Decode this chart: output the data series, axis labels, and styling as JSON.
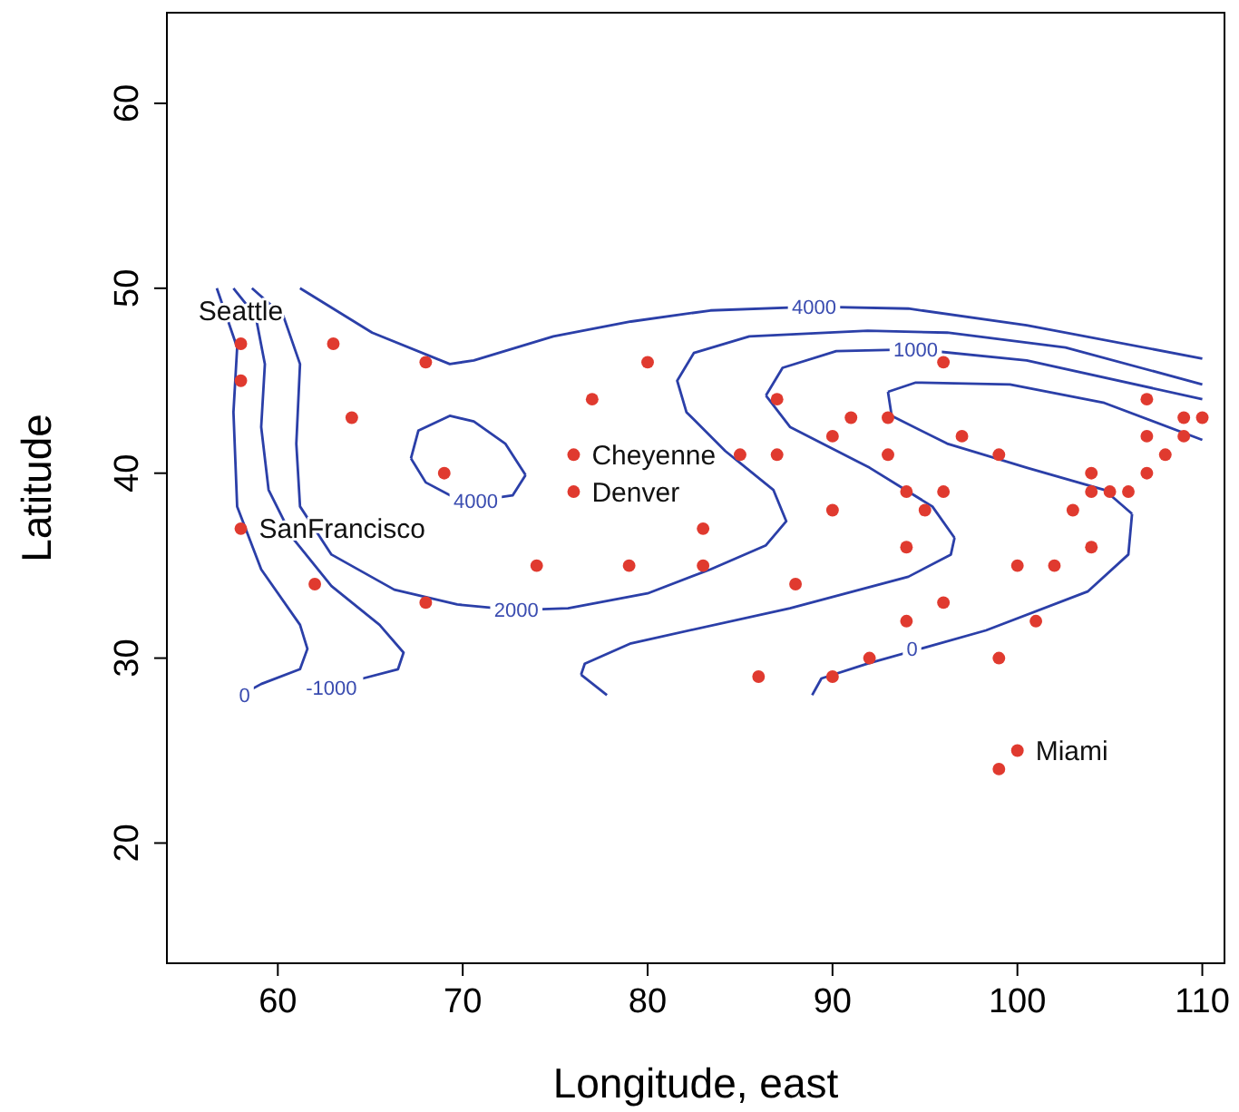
{
  "chart_data": {
    "type": "scatter",
    "xlabel": "Longitude, east",
    "ylabel": "Latitude",
    "xlim": [
      54.0,
      111.2
    ],
    "ylim": [
      13.5,
      64.9
    ],
    "xticks": [
      60,
      70,
      80,
      90,
      100,
      110
    ],
    "yticks": [
      20,
      30,
      40,
      50,
      60
    ],
    "grid": false,
    "marker": "circle",
    "series": [
      {
        "color": "#e03a2f",
        "x": [
          58,
          58,
          63,
          68,
          64,
          69,
          58,
          62,
          68,
          74,
          76,
          76,
          77,
          80,
          79,
          83,
          83,
          85,
          87,
          87,
          88,
          86,
          90,
          90,
          90,
          91,
          93,
          93,
          94,
          95,
          94,
          94,
          96,
          96,
          96,
          97,
          92,
          99,
          99,
          100,
          101,
          102,
          103,
          104,
          104,
          104,
          105,
          106,
          107,
          107,
          107,
          108,
          109,
          109,
          110,
          100,
          99
        ],
        "values": [
          47,
          45,
          47,
          46,
          43,
          40,
          37,
          34,
          33,
          35,
          41,
          39,
          44,
          46,
          35,
          37,
          35,
          41,
          44,
          41,
          34,
          29,
          42,
          38,
          29,
          43,
          43,
          41,
          39,
          38,
          36,
          32,
          46,
          39,
          33,
          42,
          30,
          41,
          30,
          35,
          32,
          35,
          38,
          40,
          39,
          36,
          39,
          39,
          44,
          42,
          40,
          41,
          43,
          42,
          43,
          25,
          24
        ]
      },
      {
        "type": "line",
        "marker": "none",
        "color": "#2b3fa8",
        "x": [
          56.7,
          57.8,
          57.6,
          57.8,
          59.1,
          61.2,
          61.6,
          61.2,
          59.1,
          58.0
        ],
        "values": [
          50.0,
          46.8,
          43.3,
          38.2,
          34.8,
          31.8,
          30.5,
          29.4,
          28.6,
          28.0
        ]
      },
      {
        "type": "line",
        "marker": "none",
        "color": "#2b3fa8",
        "x": [
          57.6,
          58.8,
          59.3,
          59.1,
          59.5,
          60.8,
          62.9,
          65.5,
          66.8,
          66.5,
          64.6,
          61.4
        ],
        "values": [
          50.0,
          48.5,
          45.9,
          42.5,
          39.1,
          36.5,
          33.9,
          31.8,
          30.3,
          29.4,
          28.9,
          27.9
        ]
      },
      {
        "type": "line",
        "marker": "none",
        "color": "#2b3fa8",
        "x": [
          58.6,
          60.3,
          61.2,
          61.0,
          61.2,
          62.9,
          66.3,
          69.7,
          72.9,
          75.7,
          80.0,
          83.4,
          86.4,
          87.5,
          86.8,
          84.2,
          82.1,
          81.6,
          82.5,
          85.5,
          91.9,
          96.2,
          102.6,
          110.0
        ],
        "values": [
          50.0,
          48.5,
          45.9,
          41.6,
          38.2,
          35.6,
          33.7,
          32.9,
          32.6,
          32.7,
          33.5,
          34.8,
          36.1,
          37.4,
          39.1,
          41.2,
          43.3,
          45.0,
          46.5,
          47.4,
          47.7,
          47.6,
          46.8,
          44.8
        ]
      },
      {
        "type": "line",
        "marker": "none",
        "color": "#2b3fa8",
        "x": [
          61.2,
          65.1,
          69.3,
          70.6,
          74.9,
          79.1,
          83.4,
          89.0,
          94.1,
          100.5,
          110.0
        ],
        "values": [
          50.0,
          47.6,
          45.9,
          46.1,
          47.4,
          48.2,
          48.8,
          49.0,
          48.9,
          48.0,
          46.2
        ]
      },
      {
        "type": "line",
        "marker": "none",
        "color": "#2b3fa8",
        "x": [
          67.2,
          67.6,
          69.3,
          70.6,
          72.3,
          73.4
        ],
        "values": [
          40.8,
          42.3,
          43.1,
          42.8,
          41.6,
          39.9
        ]
      },
      {
        "type": "line",
        "marker": "none",
        "color": "#2b3fa8",
        "x": [
          67.2,
          68.0,
          69.7,
          70.6,
          72.7,
          73.4
        ],
        "values": [
          40.8,
          39.5,
          38.6,
          38.5,
          38.8,
          39.9
        ]
      },
      {
        "type": "line",
        "marker": "none",
        "color": "#2b3fa8",
        "x": [
          77.8,
          76.4
        ],
        "values": [
          28.0,
          29.1
        ]
      },
      {
        "type": "line",
        "marker": "none",
        "color": "#2b3fa8",
        "x": [
          76.4,
          76.6,
          79.1,
          87.7,
          94.1,
          96.4,
          96.6
        ],
        "values": [
          29.1,
          29.7,
          30.8,
          32.7,
          34.4,
          35.6,
          36.5
        ]
      },
      {
        "type": "line",
        "marker": "none",
        "color": "#2b3fa8",
        "x": [
          96.6,
          95.4,
          92.0,
          87.7,
          86.4
        ],
        "values": [
          36.5,
          38.2,
          40.3,
          42.5,
          44.2
        ]
      },
      {
        "type": "line",
        "marker": "none",
        "color": "#2b3fa8",
        "x": [
          86.4,
          87.3,
          90.2,
          94.5,
          100.5,
          110.0
        ],
        "values": [
          44.2,
          45.7,
          46.6,
          46.7,
          46.1,
          44.0
        ]
      },
      {
        "type": "line",
        "marker": "none",
        "color": "#2b3fa8",
        "x": [
          88.9,
          89.4,
          91.9,
          98.3,
          103.8,
          106.0,
          106.2
        ],
        "values": [
          28.0,
          28.9,
          29.7,
          31.5,
          33.6,
          35.6,
          37.8
        ]
      },
      {
        "type": "line",
        "marker": "none",
        "color": "#2b3fa8",
        "x": [
          106.2,
          104.7,
          100.5,
          96.2,
          93.2,
          93.0
        ],
        "values": [
          37.8,
          39.1,
          40.3,
          41.6,
          43.1,
          44.4
        ]
      },
      {
        "type": "line",
        "marker": "none",
        "color": "#2b3fa8",
        "x": [
          93.0,
          94.5,
          99.6,
          104.7,
          110.0
        ],
        "values": [
          44.4,
          44.9,
          44.8,
          43.8,
          41.8
        ]
      }
    ],
    "annotations": [
      {
        "text": "Seattle",
        "x": 58,
        "y": 47
      },
      {
        "text": "SanFrancisco",
        "x": 58,
        "y": 37
      },
      {
        "text": "Cheyenne",
        "x": 76,
        "y": 41
      },
      {
        "text": "Denver",
        "x": 76,
        "y": 39
      },
      {
        "text": "Miami",
        "x": 100,
        "y": 25
      },
      {
        "text": "4000",
        "x": 89.0,
        "y": 49.0
      },
      {
        "text": "4000",
        "x": 70.7,
        "y": 38.5
      },
      {
        "text": "2000",
        "x": 72.9,
        "y": 32.6
      },
      {
        "text": "1000",
        "x": 94.5,
        "y": 46.7
      },
      {
        "text": "0",
        "x": 94.3,
        "y": 30.5
      },
      {
        "text": "0",
        "x": 58.2,
        "y": 28.0
      },
      {
        "text": "-1000",
        "x": 62.9,
        "y": 28.4
      }
    ]
  }
}
